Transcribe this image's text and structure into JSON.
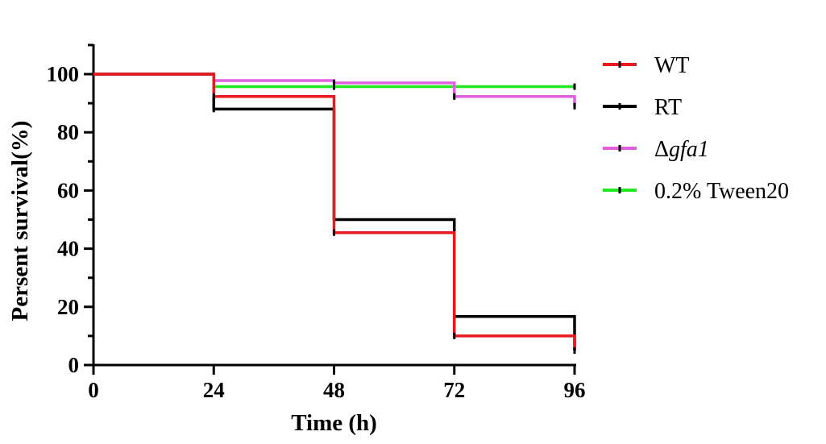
{
  "chart_data": {
    "type": "line",
    "subtype": "step (Kaplan-Meier survival)",
    "xlabel": "Time (h)",
    "ylabel": "Persent survival(%)",
    "xlim": [
      0,
      96
    ],
    "ylim": [
      0,
      110
    ],
    "xticks": [
      0,
      24,
      48,
      72,
      96
    ],
    "yticks": [
      0,
      20,
      40,
      60,
      80,
      100
    ],
    "grid": false,
    "legend_position": "right",
    "series": [
      {
        "name": "WT",
        "legend_prefix": "",
        "legend_italic": "",
        "color": "#e8191f",
        "x": [
          0,
          24,
          48,
          72,
          96
        ],
        "y": [
          100,
          92.3,
          45.5,
          10,
          5
        ]
      },
      {
        "name": "RT",
        "legend_prefix": "",
        "legend_italic": "",
        "color": "#000000",
        "x": [
          0,
          24,
          48,
          72,
          96
        ],
        "y": [
          100,
          88,
          50,
          16.7,
          5
        ]
      },
      {
        "name": "Δgfa1",
        "legend_prefix": "Δ",
        "legend_italic": "gfa1",
        "color": "#e060e0",
        "x": [
          0,
          24,
          48,
          72,
          96
        ],
        "y": [
          100,
          97.8,
          97,
          92.3,
          89
        ]
      },
      {
        "name": "0.2% Tween20",
        "legend_prefix": "",
        "legend_italic": "",
        "color": "#22e822",
        "x": [
          0,
          24,
          48,
          72,
          96
        ],
        "y": [
          100,
          95.7,
          95.7,
          95.7,
          95.7
        ]
      }
    ]
  }
}
